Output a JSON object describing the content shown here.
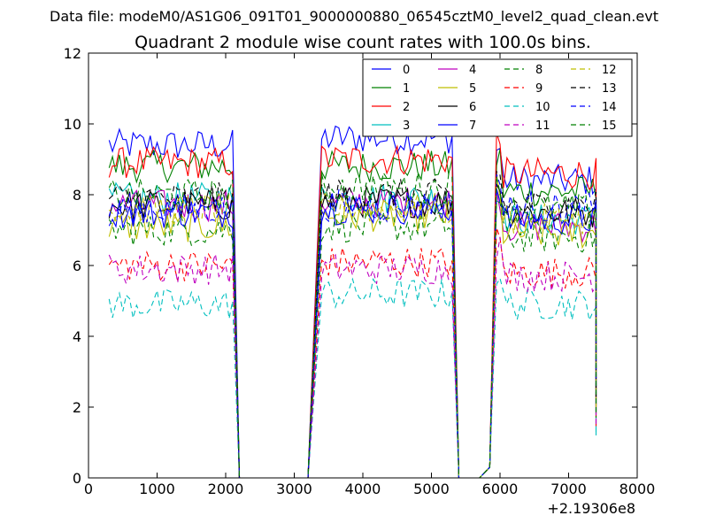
{
  "chart_data": {
    "type": "line",
    "suptitle": "Data file: modeM0/AS1G06_091T01_9000000880_06545cztM0_level2_quad_clean.evt",
    "title": "Quadrant 2 module wise count rates with 100.0s bins.",
    "xlabel": "",
    "ylabel": "",
    "x_offset_label": "+2.19306e8",
    "xlim": [
      0,
      8000
    ],
    "ylim": [
      0,
      12
    ],
    "xticks": [
      0,
      1000,
      2000,
      3000,
      4000,
      5000,
      6000,
      7000,
      8000
    ],
    "yticks": [
      0,
      2,
      4,
      6,
      8,
      10,
      12
    ],
    "legend_location": "top-right",
    "legend_columns": 4,
    "segments": [
      {
        "start": 300,
        "end": 2100
      },
      {
        "start": 3400,
        "end": 5300
      },
      {
        "start": 5950,
        "end": 7400
      }
    ],
    "gaps": [
      {
        "ramp_down": [
          2100,
          2200
        ],
        "zero": [
          2200,
          3200
        ],
        "ramp_up": [
          3200,
          3400
        ]
      },
      {
        "ramp_down": [
          5300,
          5400
        ],
        "zero": [
          5400,
          5700
        ],
        "ramp_up": [
          5700,
          5950
        ]
      }
    ],
    "final_values": [
      1.9,
      2.5,
      1.8,
      1.2,
      1.6,
      2.1,
      2.3,
      2.7,
      1.9,
      1.4,
      1.3,
      1.5,
      2.0,
      2.2,
      2.6,
      1.7
    ],
    "series": [
      {
        "name": "0",
        "color": "#0000ff",
        "style": "solid",
        "levels": [
          9.4,
          9.6,
          8.4
        ]
      },
      {
        "name": "1",
        "color": "#008000",
        "style": "solid",
        "levels": [
          8.8,
          8.8,
          8.1
        ]
      },
      {
        "name": "2",
        "color": "#ff0000",
        "style": "solid",
        "levels": [
          8.9,
          9.0,
          8.6
        ]
      },
      {
        "name": "3",
        "color": "#00bfbf",
        "style": "solid",
        "levels": [
          7.9,
          7.9,
          7.3
        ]
      },
      {
        "name": "4",
        "color": "#bf00bf",
        "style": "solid",
        "levels": [
          7.7,
          7.8,
          7.1
        ]
      },
      {
        "name": "5",
        "color": "#bfbf00",
        "style": "solid",
        "levels": [
          7.1,
          7.4,
          6.9
        ]
      },
      {
        "name": "6",
        "color": "#000000",
        "style": "solid",
        "levels": [
          7.7,
          7.8,
          7.5
        ]
      },
      {
        "name": "7",
        "color": "#0000ff",
        "style": "solid",
        "levels": [
          7.5,
          7.6,
          7.3
        ]
      },
      {
        "name": "8",
        "color": "#008000",
        "style": "dashed",
        "levels": [
          7.0,
          7.1,
          6.8
        ]
      },
      {
        "name": "9",
        "color": "#ff0000",
        "style": "dashed",
        "levels": [
          6.0,
          6.1,
          5.8
        ]
      },
      {
        "name": "10",
        "color": "#00bfbf",
        "style": "dashed",
        "levels": [
          4.9,
          5.2,
          4.9
        ]
      },
      {
        "name": "11",
        "color": "#bf00bf",
        "style": "dashed",
        "levels": [
          5.9,
          5.9,
          5.7
        ]
      },
      {
        "name": "12",
        "color": "#bfbf00",
        "style": "dashed",
        "levels": [
          7.6,
          7.6,
          7.3
        ]
      },
      {
        "name": "13",
        "color": "#000000",
        "style": "dashed",
        "levels": [
          7.9,
          8.0,
          7.7
        ]
      },
      {
        "name": "14",
        "color": "#0000ff",
        "style": "dashed",
        "levels": [
          7.6,
          7.7,
          7.6
        ]
      },
      {
        "name": "15",
        "color": "#008000",
        "style": "dashed",
        "levels": [
          8.0,
          8.2,
          7.6
        ]
      }
    ]
  }
}
